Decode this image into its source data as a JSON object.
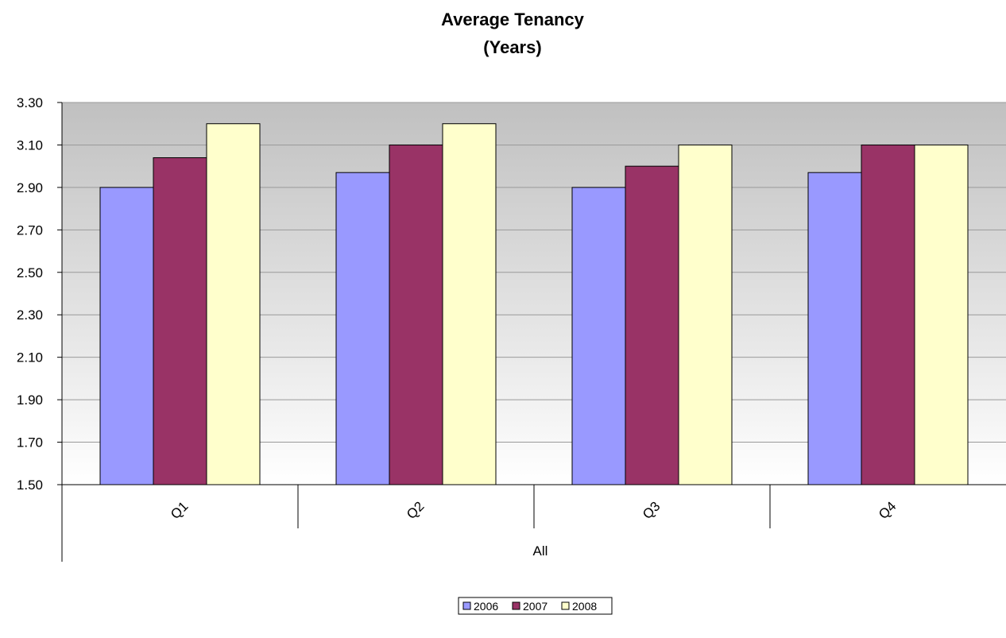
{
  "chart_data": {
    "type": "bar",
    "title_lines": [
      "Average Tenancy",
      "(Years)"
    ],
    "categories": [
      "Q1",
      "Q2",
      "Q3",
      "Q4"
    ],
    "group_label": "All",
    "series": [
      {
        "name": "2006",
        "color": "#9999ff",
        "values": [
          2.9,
          2.97,
          2.9,
          2.97
        ]
      },
      {
        "name": "2007",
        "color": "#993366",
        "values": [
          3.04,
          3.1,
          3.0,
          3.1
        ]
      },
      {
        "name": "2008",
        "color": "#ffffcc",
        "values": [
          3.2,
          3.2,
          3.1,
          3.1
        ]
      }
    ],
    "y_ticks": [
      "1.50",
      "1.70",
      "1.90",
      "2.10",
      "2.30",
      "2.50",
      "2.70",
      "2.90",
      "3.10",
      "3.30"
    ],
    "ylim": [
      1.5,
      3.3
    ],
    "grid": true,
    "legend_position": "bottom",
    "background_gradient": [
      "#c0c0c0",
      "#ffffff"
    ]
  }
}
